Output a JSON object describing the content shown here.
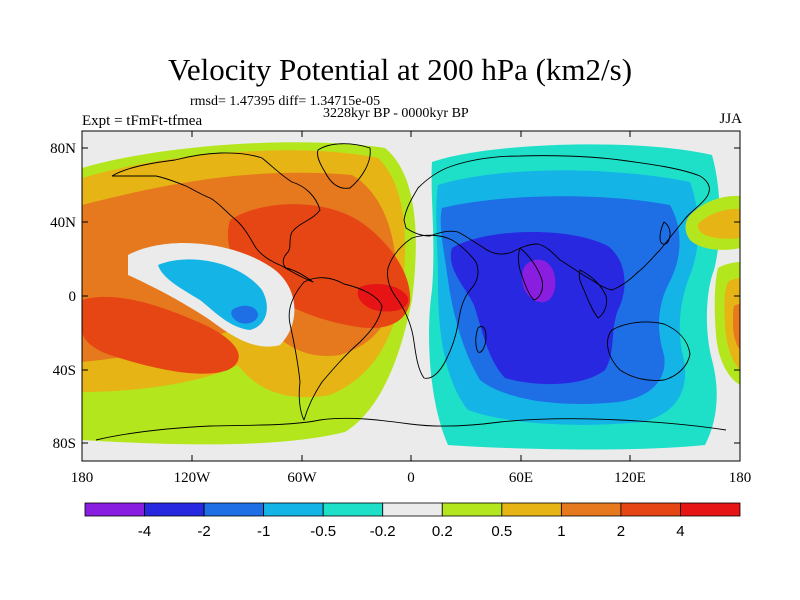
{
  "title": "Velocity Potential at 200 hPa (km2/s)",
  "stats": "rmsd= 1.47395 diff= 1.34715e-05",
  "period": "3228kyr BP - 0000kyr BP",
  "experiment": "Expt = tFmFt-tfmea",
  "season": "JJA",
  "lat_labels": [
    "80N",
    "40N",
    "0",
    "40S",
    "80S"
  ],
  "lon_labels": [
    "180",
    "120W",
    "60W",
    "0",
    "60E",
    "120E",
    "180"
  ],
  "colorbar": {
    "labels": [
      "-4",
      "-2",
      "-1",
      "-0.5",
      "-0.2",
      "0.2",
      "0.5",
      "1",
      "2",
      "4"
    ],
    "colors": [
      "#8a1ee0",
      "#2828e0",
      "#1e6ee6",
      "#14b4e6",
      "#1ee0c8",
      "#ebebeb",
      "#b4e61e",
      "#e6b414",
      "#e6781e",
      "#e64614",
      "#e61414"
    ]
  },
  "colors": {
    "ocean_background": "#ebebeb",
    "coastline": "#000000"
  }
}
